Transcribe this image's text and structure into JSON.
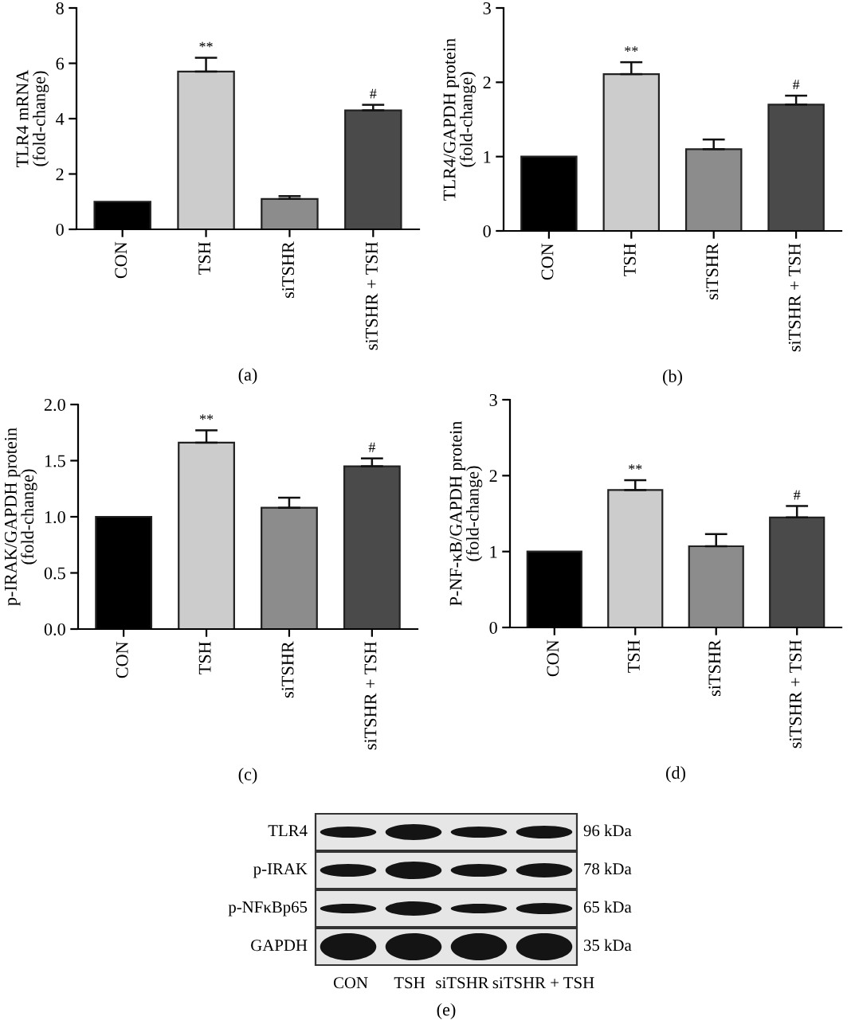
{
  "chart_data": [
    {
      "type": "bar",
      "categories": [
        "CON",
        "TSH",
        "siTSHR",
        "siTSHR + TSH"
      ],
      "values": [
        1.0,
        5.7,
        1.1,
        4.3
      ],
      "colors": [
        "#000000",
        "#cccccc",
        "#8c8c8c",
        "#4a4a4a"
      ],
      "errors": [
        null,
        [
          5.7,
          6.2
        ],
        [
          1.1,
          1.2
        ],
        [
          4.3,
          4.5
        ]
      ],
      "ylabel": "TLR4 mRNA\n(fold-change)",
      "xlabel": "(a)",
      "ylim": [
        0,
        8
      ],
      "yticks": [
        0,
        2,
        4,
        6,
        8
      ],
      "annotations": [
        {
          "text": "**",
          "x": "TSH",
          "y": 6.2
        },
        {
          "text": "#",
          "x": "siTSHR + TSH",
          "y": 4.5
        }
      ]
    },
    {
      "type": "bar",
      "categories": [
        "CON",
        "TSH",
        "siTSHR",
        "siTSHR + TSH"
      ],
      "values": [
        1.0,
        2.11,
        1.1,
        1.7
      ],
      "colors": [
        "#000000",
        "#cccccc",
        "#8c8c8c",
        "#4a4a4a"
      ],
      "errors": [
        null,
        [
          2.11,
          2.27
        ],
        [
          1.1,
          1.23
        ],
        [
          1.7,
          1.82
        ]
      ],
      "ylabel": "TLR4/GAPDH protein\n(fold-change)",
      "xlabel": "(b)",
      "ylim": [
        0,
        3
      ],
      "yticks": [
        0,
        1,
        2,
        3
      ],
      "annotations": [
        {
          "text": "**",
          "x": "TSH",
          "y": 2.27
        },
        {
          "text": "#",
          "x": "siTSHR + TSH",
          "y": 1.82
        }
      ]
    },
    {
      "type": "bar",
      "categories": [
        "CON",
        "TSH",
        "siTSHR",
        "siTSHR + TSH"
      ],
      "values": [
        1.0,
        1.66,
        1.08,
        1.45
      ],
      "colors": [
        "#000000",
        "#cccccc",
        "#8c8c8c",
        "#4a4a4a"
      ],
      "errors": [
        null,
        [
          1.66,
          1.77
        ],
        [
          1.08,
          1.17
        ],
        [
          1.45,
          1.52
        ]
      ],
      "ylabel": "p-IRAK/GAPDH protein\n(fold-change)",
      "xlabel": "(c)",
      "ylim": [
        0,
        2
      ],
      "yticks": [
        {
          "value": 0,
          "label": "0.0"
        },
        0.5,
        {
          "value": 1,
          "label": "1.0"
        },
        1.5,
        {
          "value": 2,
          "label": "2.0"
        }
      ],
      "annotations": [
        {
          "text": "**",
          "x": "TSH",
          "y": 1.77
        },
        {
          "text": "#",
          "x": "siTSHR + TSH",
          "y": 1.52
        }
      ]
    },
    {
      "type": "bar",
      "categories": [
        "CON",
        "TSH",
        "siTSHR",
        "siTSHR + TSH"
      ],
      "values": [
        1.0,
        1.81,
        1.07,
        1.45
      ],
      "colors": [
        "#000000",
        "#cccccc",
        "#8c8c8c",
        "#4a4a4a"
      ],
      "errors": [
        null,
        [
          1.81,
          1.94
        ],
        [
          1.07,
          1.23
        ],
        [
          1.45,
          1.6
        ]
      ],
      "ylabel": "P-NF-κB/GAPDH protein\n(fold-change)",
      "xlabel": "(d)",
      "ylim": [
        0,
        3
      ],
      "yticks": [
        0,
        1,
        2,
        3
      ],
      "annotations": [
        {
          "text": "**",
          "x": "TSH",
          "y": 1.94
        },
        {
          "text": "#",
          "x": "siTSHR + TSH",
          "y": 1.6
        }
      ]
    },
    {
      "type": "other",
      "categories": [
        "CON",
        "TSH",
        "siTSHR",
        "siTSHR + TSH"
      ],
      "y_categories": [
        "TLR4",
        "p-IRAK",
        "p-NFκBp65",
        "GAPDH"
      ],
      "y2_categories": [
        "96 kDa",
        "78 kDa",
        "65 kDa",
        "35 kDa"
      ],
      "xlabel": "(e)"
    }
  ]
}
